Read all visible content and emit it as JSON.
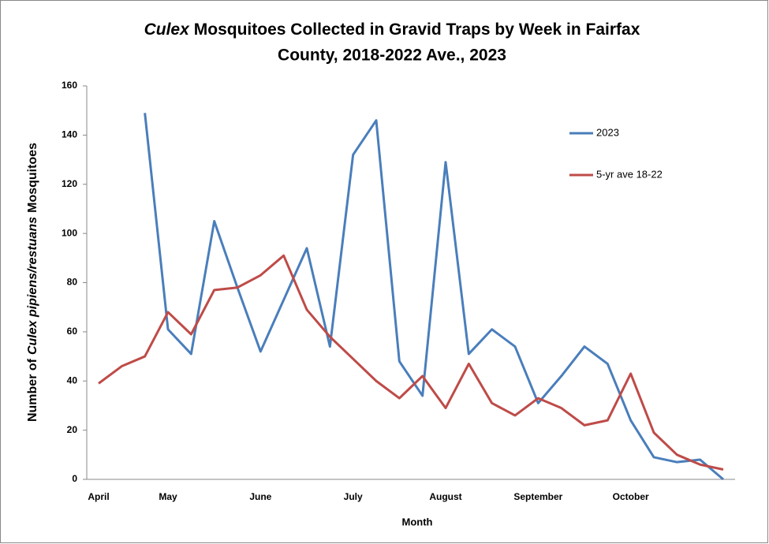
{
  "chart_data": {
    "type": "line",
    "title": {
      "italic": "Culex",
      "line1": "Mosquitoes Collected in Gravid Traps by Week in Fairfax",
      "line2": "County, 2018-2022 Ave., 2023"
    },
    "y_label": [
      "Number of",
      "Culex pipiens/restuans",
      "Mosquitoes"
    ],
    "x_label": "Month",
    "categories": [
      "April",
      null,
      null,
      "May",
      null,
      null,
      null,
      "June",
      null,
      null,
      null,
      "July",
      null,
      null,
      null,
      "August",
      null,
      null,
      null,
      "September",
      null,
      null,
      null,
      "October",
      null,
      null,
      null,
      null
    ],
    "series": [
      {
        "name": "2023",
        "color": "#4a7ebb",
        "values": [
          null,
          null,
          149,
          61,
          51,
          105,
          78,
          52,
          73,
          94,
          54,
          132,
          146,
          48,
          34,
          129,
          51,
          61,
          54,
          31,
          42,
          54,
          47,
          24,
          9,
          7,
          8,
          0
        ]
      },
      {
        "name": "5-yr ave 18-22",
        "color": "#be4b48",
        "values": [
          39,
          46,
          50,
          68,
          59,
          77,
          78,
          83,
          91,
          69,
          58,
          49,
          40,
          33,
          42,
          29,
          47,
          31,
          26,
          33,
          29,
          22,
          24,
          43,
          19,
          10,
          6,
          4
        ]
      }
    ],
    "ylim": [
      0,
      160
    ],
    "yticks": [
      0,
      20,
      40,
      60,
      80,
      100,
      120,
      140,
      160
    ],
    "legend": "upper right",
    "grid": false
  }
}
